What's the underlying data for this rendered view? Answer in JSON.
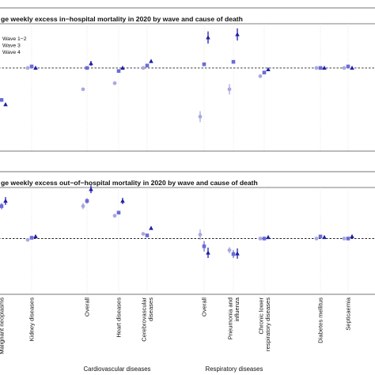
{
  "chart_data": {
    "type": "scatter",
    "colors": {
      "Wave 1-2": "#a9a9df",
      "Wave 3": "#6b6bd6",
      "Wave 4": "#1f1fa8"
    },
    "legend": {
      "position": "top-left",
      "entries": [
        "Wave 1−2",
        "Wave 3",
        "Wave 4"
      ]
    },
    "categories": [
      "Malignant neoplasms",
      "Kidney diseases",
      "Overall",
      "Heart diseases",
      "Cerebrovascular diseases",
      "Overall",
      "Pneumonia and influenza",
      "Chronic lower respiratory diseases",
      "Diabetes mellitus",
      "Septicaemia"
    ],
    "groups": [
      {
        "label": "Cardiovascular diseases"
      },
      {
        "label": "Respiratory diseases"
      }
    ],
    "panels": [
      {
        "title": "ge weekly excess in−hospital mortality in 2020 by wave and cause of death",
        "ylim": [
          -2.6,
          1.4
        ],
        "reference_line": 0,
        "series": [
          {
            "name": "Wave 1-2",
            "shape": "circle",
            "values": [
              -0.8,
              0.0,
              -0.7,
              -0.5,
              0.0,
              -1.6,
              -0.7,
              -0.27,
              0.0,
              0.0
            ],
            "err": [
              0.05,
              0.02,
              0.03,
              0.03,
              0.02,
              0.18,
              0.17,
              0.04,
              0.02,
              0.03
            ]
          },
          {
            "name": "Wave 3",
            "shape": "square",
            "values": [
              -1.05,
              0.05,
              0.0,
              -0.1,
              0.08,
              0.12,
              0.2,
              -0.15,
              0.0,
              0.05
            ],
            "err": [
              0.05,
              0.02,
              0.03,
              0.03,
              0.03,
              0.05,
              0.05,
              0.03,
              0.02,
              0.03
            ]
          },
          {
            "name": "Wave 4",
            "shape": "triangle",
            "values": [
              -1.2,
              0.0,
              0.15,
              0.0,
              0.22,
              1.0,
              1.1,
              -0.05,
              0.0,
              0.0
            ],
            "err": [
              0.05,
              0.02,
              0.08,
              0.03,
              0.03,
              0.2,
              0.2,
              0.03,
              0.02,
              0.03
            ]
          }
        ]
      },
      {
        "title": "ge weekly excess out−of−hospital mortality in 2020 by wave and cause of death",
        "ylim": [
          -2.0,
          2.0
        ],
        "reference_line": 0,
        "series": [
          {
            "name": "Wave 1-2",
            "shape": "circle",
            "values": [
              0.9,
              -0.05,
              1.25,
              0.88,
              0.18,
              0.15,
              -0.45,
              0.0,
              0.0,
              0.0
            ],
            "err": [
              0.12,
              0.03,
              0.12,
              0.06,
              0.04,
              0.2,
              0.12,
              0.03,
              0.02,
              0.03
            ]
          },
          {
            "name": "Wave 3",
            "shape": "square",
            "values": [
              1.25,
              0.03,
              1.45,
              1.0,
              0.12,
              -0.3,
              -0.6,
              0.0,
              0.08,
              0.0
            ],
            "err": [
              0.12,
              0.03,
              0.1,
              0.06,
              0.04,
              0.2,
              0.15,
              0.03,
              0.02,
              0.03
            ]
          },
          {
            "name": "Wave 4",
            "shape": "triangle",
            "values": [
              1.45,
              0.08,
              1.9,
              1.45,
              0.4,
              -0.55,
              -0.58,
              0.05,
              0.05,
              0.08
            ],
            "err": [
              0.15,
              0.03,
              0.15,
              0.12,
              0.05,
              0.2,
              0.2,
              0.03,
              0.02,
              0.03
            ]
          }
        ]
      }
    ]
  }
}
